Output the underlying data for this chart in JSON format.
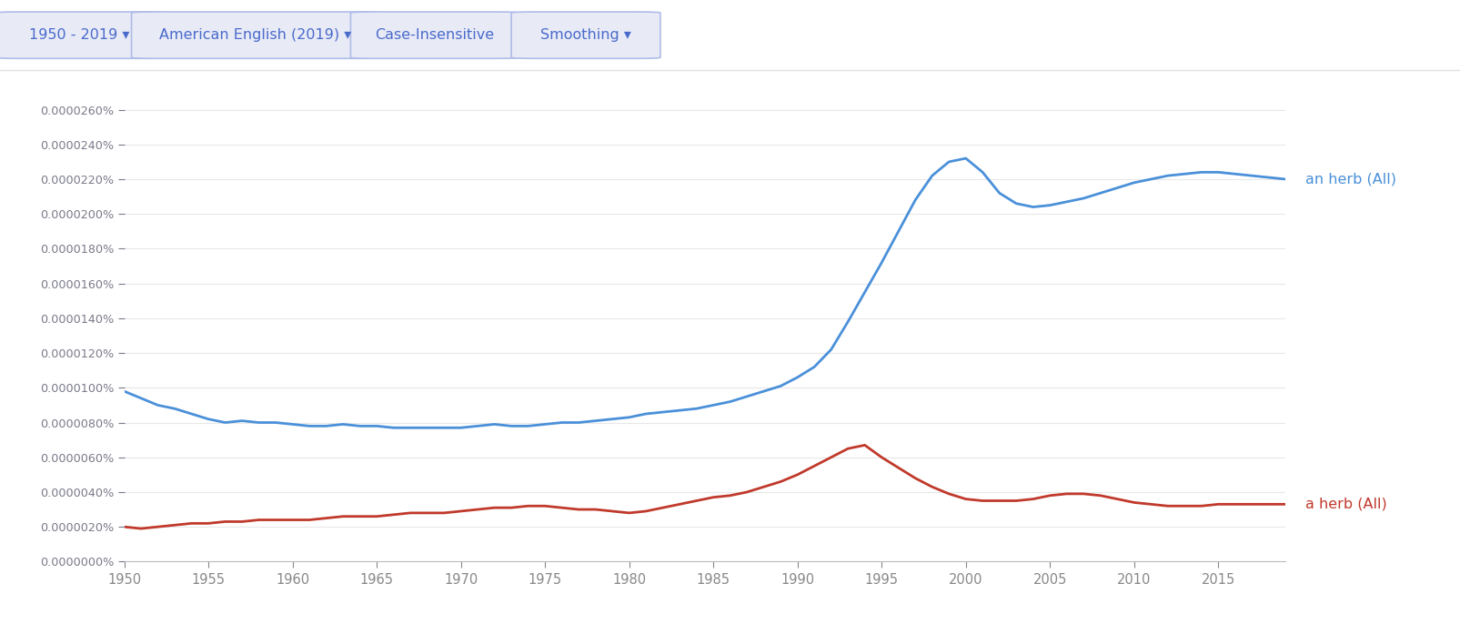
{
  "background_color": "#ffffff",
  "blue_label": "an herb (All)",
  "red_label": "a herb (All)",
  "blue_color": "#4a90d9",
  "red_color": "#c0392b",
  "ylabel_color": "#7a7a8a",
  "xlabel_color": "#888888",
  "grid_color": "#e8e8e8",
  "axis_color": "#bbbbbb",
  "header_bg": "#ffffff",
  "header_border_bottom": "#e0e0e0",
  "btn_bg": "#e8eaf6",
  "btn_border": "#b0bce8",
  "btn_text_color": "#4a6bcc",
  "years": [
    1950,
    1951,
    1952,
    1953,
    1954,
    1955,
    1956,
    1957,
    1958,
    1959,
    1960,
    1961,
    1962,
    1963,
    1964,
    1965,
    1966,
    1967,
    1968,
    1969,
    1970,
    1971,
    1972,
    1973,
    1974,
    1975,
    1976,
    1977,
    1978,
    1979,
    1980,
    1981,
    1982,
    1983,
    1984,
    1985,
    1986,
    1987,
    1988,
    1989,
    1990,
    1991,
    1992,
    1993,
    1994,
    1995,
    1996,
    1997,
    1998,
    1999,
    2000,
    2001,
    2002,
    2003,
    2004,
    2005,
    2006,
    2007,
    2008,
    2009,
    2010,
    2011,
    2012,
    2013,
    2014,
    2015,
    2016,
    2017,
    2018,
    2019
  ],
  "an_herb": [
    9.8e-08,
    9.4e-08,
    9e-08,
    8.8e-08,
    8.5e-08,
    8.2e-08,
    8e-08,
    8.1e-08,
    8e-08,
    8e-08,
    7.9e-08,
    7.8e-08,
    7.8e-08,
    7.9e-08,
    7.8e-08,
    7.8e-08,
    7.7e-08,
    7.7e-08,
    7.7e-08,
    7.7e-08,
    7.7e-08,
    7.8e-08,
    7.9e-08,
    7.8e-08,
    7.8e-08,
    7.9e-08,
    8e-08,
    8e-08,
    8.1e-08,
    8.2e-08,
    8.3e-08,
    8.5e-08,
    8.6e-08,
    8.7e-08,
    8.8e-08,
    9e-08,
    9.2e-08,
    9.5e-08,
    9.8e-08,
    1.01e-07,
    1.06e-07,
    1.12e-07,
    1.22e-07,
    1.38e-07,
    1.55e-07,
    1.72e-07,
    1.9e-07,
    2.08e-07,
    2.22e-07,
    2.3e-07,
    2.32e-07,
    2.24e-07,
    2.12e-07,
    2.06e-07,
    2.04e-07,
    2.05e-07,
    2.07e-07,
    2.09e-07,
    2.12e-07,
    2.15e-07,
    2.18e-07,
    2.2e-07,
    2.22e-07,
    2.23e-07,
    2.24e-07,
    2.24e-07,
    2.23e-07,
    2.22e-07,
    2.21e-07,
    2.2e-07
  ],
  "a_herb": [
    2e-08,
    1.9e-08,
    2e-08,
    2.1e-08,
    2.2e-08,
    2.2e-08,
    2.3e-08,
    2.3e-08,
    2.4e-08,
    2.4e-08,
    2.4e-08,
    2.4e-08,
    2.5e-08,
    2.6e-08,
    2.6e-08,
    2.6e-08,
    2.7e-08,
    2.8e-08,
    2.8e-08,
    2.8e-08,
    2.9e-08,
    3e-08,
    3.1e-08,
    3.1e-08,
    3.2e-08,
    3.2e-08,
    3.1e-08,
    3e-08,
    3e-08,
    2.9e-08,
    2.8e-08,
    2.9e-08,
    3.1e-08,
    3.3e-08,
    3.5e-08,
    3.7e-08,
    3.8e-08,
    4e-08,
    4.3e-08,
    4.6e-08,
    5e-08,
    5.5e-08,
    6e-08,
    6.5e-08,
    6.7e-08,
    6e-08,
    5.4e-08,
    4.8e-08,
    4.3e-08,
    3.9e-08,
    3.6e-08,
    3.5e-08,
    3.5e-08,
    3.5e-08,
    3.6e-08,
    3.8e-08,
    3.9e-08,
    3.9e-08,
    3.8e-08,
    3.6e-08,
    3.4e-08,
    3.3e-08,
    3.2e-08,
    3.2e-08,
    3.2e-08,
    3.3e-08,
    3.3e-08,
    3.3e-08,
    3.3e-08,
    3.3e-08
  ],
  "header_buttons": [
    {
      "label": "1950 - 2019 ▾",
      "has_border": true
    },
    {
      "label": "American English (2019) ▾",
      "has_border": true
    },
    {
      "label": "Case-Insensitive",
      "has_border": false
    },
    {
      "label": "Smoothing ▾",
      "has_border": false
    }
  ],
  "xlim": [
    1950,
    2019
  ],
  "ylim": [
    0,
    2.8e-07
  ],
  "ytick_max": 13,
  "ytick_step_val": 2e-08,
  "xtick_start": 1950,
  "xtick_end": 2020,
  "xtick_step": 5
}
